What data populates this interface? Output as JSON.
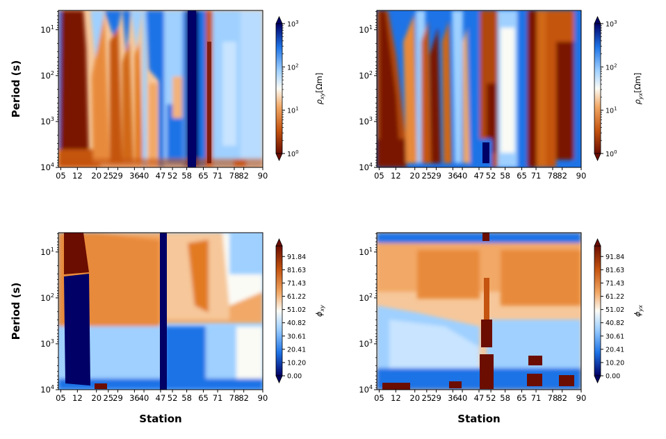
{
  "chart_data": [
    {
      "type": "heatmap",
      "id": "rho_xy",
      "ylabel": "Period (s)",
      "xlabel": "",
      "x_ticks": [
        "05",
        "12",
        "20",
        "25",
        "29",
        "36",
        "40",
        "47",
        "52",
        "58",
        "65",
        "71",
        "78",
        "82",
        "90"
      ],
      "y_tick_exponents": [
        "1",
        "2",
        "3",
        "4"
      ],
      "colormap": "orange-white-blue (log scale)",
      "colorbar": {
        "label_main": "ρ",
        "label_sub": "xy",
        "label_unit": "[Ωm]",
        "scale": "log",
        "range": [
          1,
          1000
        ],
        "ticks_exp": [
          "0",
          "1",
          "2",
          "3"
        ]
      }
    },
    {
      "type": "heatmap",
      "id": "rho_yx",
      "ylabel": "",
      "xlabel": "",
      "x_ticks": [
        "05",
        "12",
        "20",
        "25",
        "29",
        "36",
        "40",
        "47",
        "52",
        "58",
        "65",
        "71",
        "78",
        "82",
        "90"
      ],
      "y_tick_exponents": [
        "1",
        "2",
        "3",
        "4"
      ],
      "colormap": "orange-white-blue (log scale)",
      "colorbar": {
        "label_main": "ρ",
        "label_sub": "yx",
        "label_unit": "[Ωm]",
        "scale": "log",
        "range": [
          1,
          1000
        ],
        "ticks_exp": [
          "0",
          "1",
          "2",
          "3"
        ]
      }
    },
    {
      "type": "heatmap",
      "id": "phi_xy",
      "ylabel": "Period (s)",
      "xlabel": "Station",
      "x_ticks": [
        "05",
        "12",
        "20",
        "25",
        "29",
        "36",
        "40",
        "47",
        "52",
        "58",
        "65",
        "71",
        "78",
        "82",
        "90"
      ],
      "y_tick_exponents": [
        "1",
        "2",
        "3",
        "4"
      ],
      "colormap": "blue-white-orange",
      "colorbar": {
        "label_main": "ϕ",
        "label_sub": "xy",
        "label_unit": "",
        "scale": "linear",
        "range": [
          0,
          100
        ],
        "ticks": [
          "0.00",
          "10.20",
          "20.41",
          "30.61",
          "40.82",
          "51.02",
          "61.22",
          "71.43",
          "81.63",
          "91.84"
        ]
      }
    },
    {
      "type": "heatmap",
      "id": "phi_yx",
      "ylabel": "",
      "xlabel": "Station",
      "x_ticks": [
        "05",
        "12",
        "20",
        "25",
        "29",
        "36",
        "40",
        "47",
        "52",
        "58",
        "65",
        "71",
        "78",
        "82",
        "90"
      ],
      "y_tick_exponents": [
        "1",
        "2",
        "3",
        "4"
      ],
      "colormap": "blue-white-orange",
      "colorbar": {
        "label_main": "ϕ",
        "label_sub": "yx",
        "label_unit": "",
        "scale": "linear",
        "range": [
          0,
          100
        ],
        "ticks": [
          "0.00",
          "10.20",
          "20.41",
          "30.61",
          "40.82",
          "51.02",
          "61.22",
          "71.43",
          "81.63",
          "91.84"
        ]
      }
    }
  ],
  "colors": {
    "dark_red": "#6b0d00",
    "orange": "#d97a2a",
    "light_orange": "#f6c79a",
    "white": "#fbfbf5",
    "light_blue": "#9fd0ff",
    "blue": "#1e73e6",
    "navy": "#000066"
  }
}
